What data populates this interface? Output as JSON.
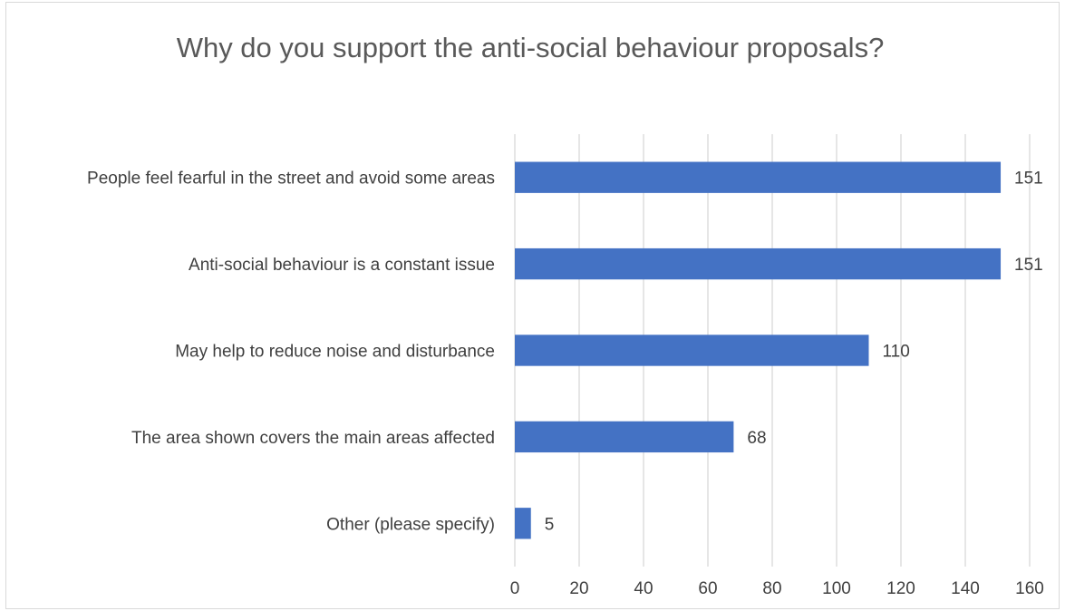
{
  "chart_data": {
    "type": "bar",
    "orientation": "horizontal",
    "title": "Why do you support the anti-social behaviour proposals?",
    "categories": [
      "People feel fearful in the street and avoid some areas",
      "Anti-social behaviour is a constant issue",
      "May help to reduce noise and disturbance",
      "The area shown covers the main areas affected",
      "Other (please specify)"
    ],
    "values": [
      151,
      151,
      110,
      68,
      5
    ],
    "data_labels": [
      "151",
      "151",
      "110",
      "68",
      "5"
    ],
    "xlim": [
      0,
      160
    ],
    "x_ticks": [
      0,
      20,
      40,
      60,
      80,
      100,
      120,
      140,
      160
    ],
    "grid": true,
    "legend": "none",
    "bar_color": "#4472c4"
  }
}
